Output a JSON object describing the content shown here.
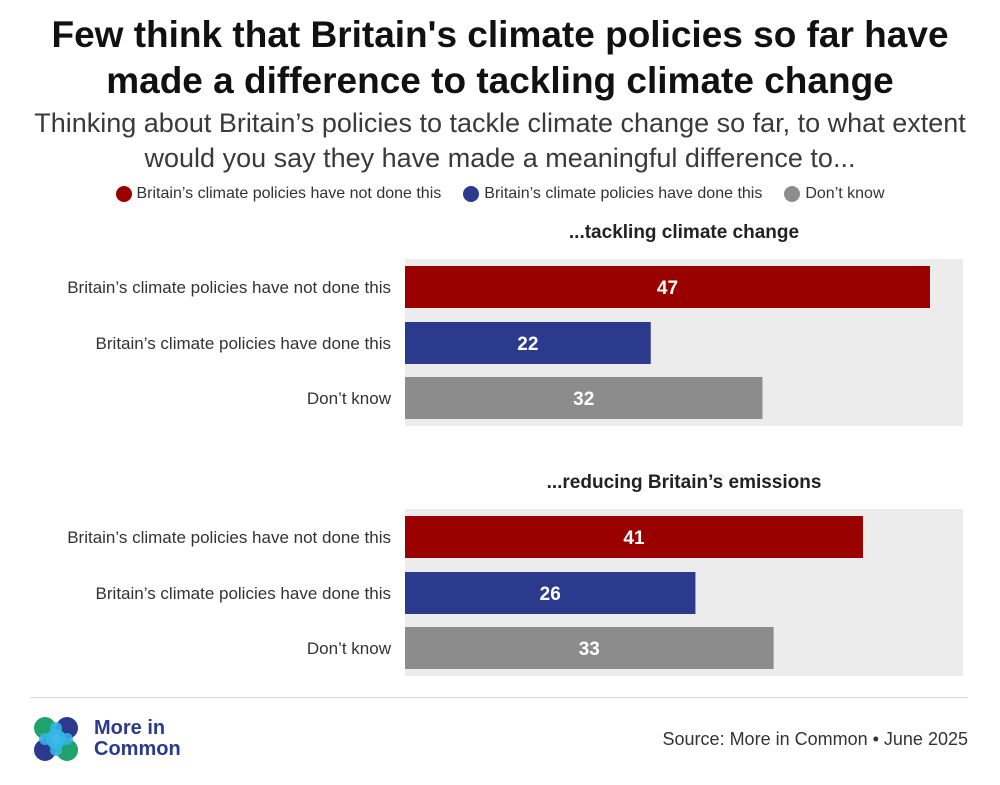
{
  "header": {
    "title": "Few think that Britain's climate policies so far have made a difference to tackling climate change",
    "subtitle": "Thinking about Britain’s policies to tackle climate change so far, to what extent would you say they have made a meaningful difference to..."
  },
  "legend": {
    "items": [
      {
        "label": "Britain’s climate policies have not done this",
        "color": "#9b0000"
      },
      {
        "label": "Britain’s climate policies have done this",
        "color": "#2b3a8c"
      },
      {
        "label": "Don’t know",
        "color": "#8c8c8c"
      }
    ]
  },
  "chart_data": [
    {
      "type": "bar",
      "orientation": "horizontal",
      "title": "...tackling climate change",
      "categories": [
        "Britain’s climate policies have not done this",
        "Britain’s climate policies have done this",
        "Don’t know"
      ],
      "values": [
        47,
        22,
        32
      ],
      "colors": [
        "#9b0000",
        "#2b3a8c",
        "#8c8c8c"
      ],
      "xlim": [
        0,
        50
      ],
      "value_labels": [
        "47",
        "22",
        "32"
      ]
    },
    {
      "type": "bar",
      "orientation": "horizontal",
      "title": "...reducing Britain’s emissions",
      "categories": [
        "Britain’s climate policies have not done this",
        "Britain’s climate policies have done this",
        "Don’t know"
      ],
      "values": [
        41,
        26,
        33
      ],
      "colors": [
        "#9b0000",
        "#2b3a8c",
        "#8c8c8c"
      ],
      "xlim": [
        0,
        50
      ],
      "value_labels": [
        "41",
        "26",
        "33"
      ]
    }
  ],
  "footer": {
    "logo_line1": "More in",
    "logo_line2": "Common",
    "source": "Source: More in Common • June 2025"
  }
}
